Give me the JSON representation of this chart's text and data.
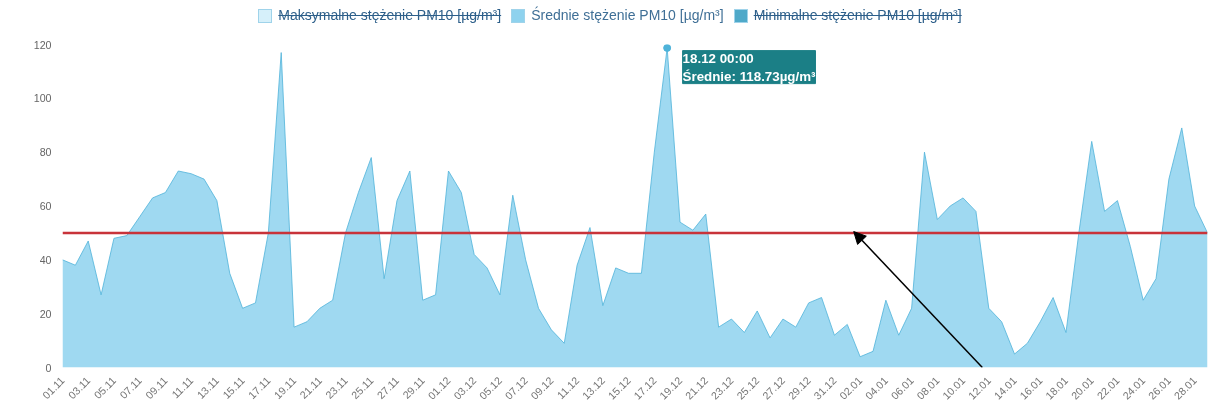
{
  "chart_data": {
    "type": "area",
    "categories": [
      "01.11",
      null,
      "03.11",
      null,
      "05.11",
      null,
      "07.11",
      null,
      "09.11",
      null,
      "11.11",
      null,
      "13.11",
      null,
      "15.11",
      null,
      "17.11",
      null,
      "19.11",
      null,
      "21.11",
      null,
      "23.11",
      null,
      "25.11",
      null,
      "27.11",
      null,
      "29.11",
      null,
      "01.12",
      null,
      "03.12",
      null,
      "05.12",
      null,
      "07.12",
      null,
      "09.12",
      null,
      "11.12",
      null,
      "13.12",
      null,
      "15.12",
      null,
      "17.12",
      null,
      "19.12",
      null,
      "21.12",
      null,
      "23.12",
      null,
      "25.12",
      null,
      "27.12",
      null,
      "29.12",
      null,
      "31.12",
      null,
      "02.01",
      null,
      "04.01",
      null,
      "06.01",
      null,
      "08.01",
      null,
      "10.01",
      null,
      "12.01",
      null,
      "14.01",
      null,
      "16.01",
      null,
      "18.01",
      null,
      "20.01",
      null,
      "22.01",
      null,
      "24.01",
      null,
      "26.01",
      null,
      "28.01",
      null
    ],
    "series": [
      {
        "name": "Maksymalne stężenie PM10 [µg/m³]",
        "color": "#d6f0fa",
        "values": [
          null,
          null,
          null,
          null,
          null,
          null,
          null,
          null,
          null,
          null,
          null,
          null,
          null,
          null,
          null,
          null,
          null,
          null,
          null,
          null,
          null,
          null,
          null,
          null,
          null,
          null,
          null,
          null,
          null,
          null,
          null,
          null,
          null,
          null,
          null,
          null,
          null,
          null,
          null,
          null,
          null,
          null,
          null,
          null,
          null,
          null,
          null,
          null,
          null,
          null,
          null,
          null,
          null,
          null,
          null,
          null,
          null,
          null,
          null,
          null,
          null,
          null,
          null,
          null,
          null,
          null,
          null,
          null,
          null,
          null,
          null,
          null,
          null,
          null,
          null,
          null,
          null,
          null,
          null,
          null,
          null,
          null,
          null,
          null,
          null,
          null,
          null,
          null,
          null,
          null
        ]
      },
      {
        "name": "Średnie stężenie PM10 [µg/m³]",
        "color": "#8ed2ee",
        "values": [
          40,
          38,
          47,
          27,
          48,
          49,
          56,
          63,
          65,
          73,
          72,
          70,
          62,
          35,
          22,
          24,
          50,
          117,
          15,
          17,
          22,
          25,
          50,
          65,
          78,
          33,
          62,
          73,
          25,
          27,
          73,
          65,
          42,
          37,
          27,
          64,
          40,
          22,
          14,
          9,
          38,
          52,
          23,
          37,
          35,
          35,
          80,
          118.73,
          54,
          51,
          57,
          15,
          18,
          13,
          21,
          11,
          18,
          15,
          24,
          26,
          12,
          16,
          4,
          6,
          25,
          12,
          22,
          80,
          55,
          60,
          63,
          58,
          22,
          17,
          5,
          9,
          17,
          26,
          13,
          50,
          84,
          58,
          62,
          45,
          25,
          33,
          70,
          89,
          60,
          50
        ]
      },
      {
        "name": "Minimalne stężenie PM10 [µg/m³]",
        "color": "#4fa9c9",
        "values": [
          null,
          null,
          null,
          null,
          null,
          null,
          null,
          null,
          null,
          null,
          null,
          null,
          null,
          null,
          null,
          null,
          null,
          null,
          null,
          null,
          null,
          null,
          null,
          null,
          null,
          null,
          null,
          null,
          null,
          null,
          null,
          null,
          null,
          null,
          null,
          null,
          null,
          null,
          null,
          null,
          null,
          null,
          null,
          null,
          null,
          null,
          null,
          null,
          null,
          null,
          null,
          null,
          null,
          null,
          null,
          null,
          null,
          null,
          null,
          null,
          null,
          null,
          null,
          null,
          null,
          null,
          null,
          null,
          null,
          null,
          null,
          null,
          null,
          null,
          null,
          null,
          null,
          null,
          null,
          null,
          null,
          null,
          null,
          null,
          null,
          null,
          null,
          null,
          null,
          null
        ]
      }
    ],
    "ylim": [
      0,
      120
    ],
    "yticks": [
      0,
      20,
      40,
      60,
      80,
      100,
      120
    ],
    "ref_lines": [
      {
        "axis": "y",
        "value": 50,
        "color": "#c8333a"
      }
    ],
    "annotations": [
      "18.12 00:00",
      "Średnie: 118.73µg/m³"
    ],
    "legend": "top",
    "grid": false
  }
}
